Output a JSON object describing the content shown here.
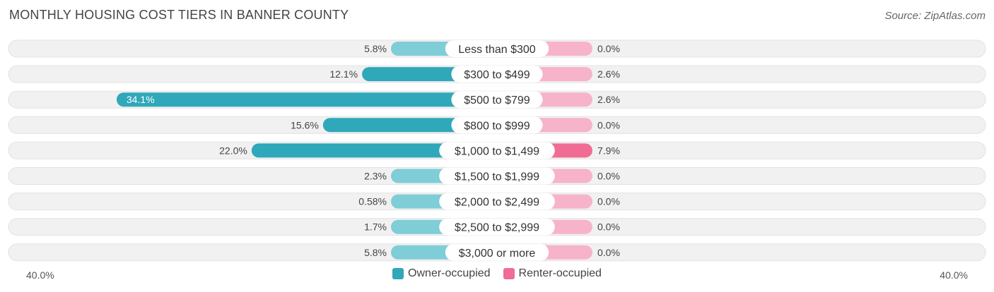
{
  "title": "MONTHLY HOUSING COST TIERS IN BANNER COUNTY",
  "source": "Source: ZipAtlas.com",
  "colors": {
    "owner_light": "#7fcdd6",
    "owner_dark": "#2fa8ba",
    "renter_light": "#f7b3c9",
    "renter_dark": "#f06c95",
    "track": "#f1f1f1"
  },
  "legend": {
    "owner": "Owner-occupied",
    "renter": "Renter-occupied"
  },
  "chart_data": {
    "type": "bar",
    "orientation": "horizontal-diverging",
    "categories": [
      "Less than $300",
      "$300 to $499",
      "$500 to $799",
      "$800 to $999",
      "$1,000 to $1,499",
      "$1,500 to $1,999",
      "$2,000 to $2,499",
      "$2,500 to $2,999",
      "$3,000 or more"
    ],
    "series": [
      {
        "name": "Owner-occupied",
        "values": [
          5.8,
          12.1,
          34.1,
          15.6,
          22.0,
          2.3,
          0.58,
          1.7,
          5.8
        ],
        "labels": [
          "5.8%",
          "12.1%",
          "34.1%",
          "15.6%",
          "22.0%",
          "2.3%",
          "0.58%",
          "1.7%",
          "5.8%"
        ]
      },
      {
        "name": "Renter-occupied",
        "values": [
          0.0,
          2.6,
          2.6,
          0.0,
          7.9,
          0.0,
          0.0,
          0.0,
          0.0
        ],
        "labels": [
          "0.0%",
          "2.6%",
          "2.6%",
          "0.0%",
          "7.9%",
          "0.0%",
          "0.0%",
          "0.0%",
          "0.0%"
        ]
      }
    ],
    "axis": {
      "min": -40,
      "max": 40,
      "left_label": "40.0%",
      "right_label": "40.0%"
    },
    "legend_position": "bottom-center",
    "grid": false
  }
}
